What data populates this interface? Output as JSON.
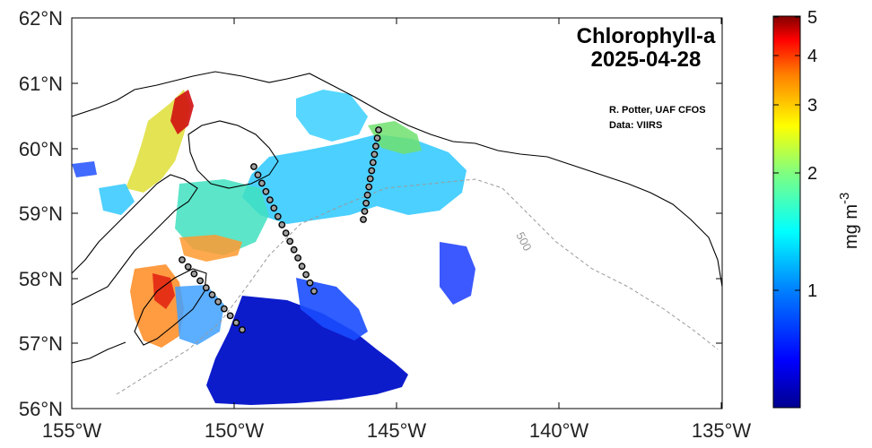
{
  "title": {
    "line1": "Chlorophyll-a",
    "line2": "2025-04-28"
  },
  "credits": {
    "author": "R. Potter, UAF CFOS",
    "data_source": "Data: VIIRS"
  },
  "axes": {
    "lon_ticks": [
      "155°W",
      "150°W",
      "145°W",
      "140°W",
      "135°W"
    ],
    "lat_ticks": [
      "62°N",
      "61°N",
      "60°N",
      "59°N",
      "58°N",
      "57°N",
      "56°N"
    ]
  },
  "colorbar": {
    "unit_main": "mg m",
    "unit_exp": "-3",
    "tick_labels": [
      "5",
      "4",
      "3",
      "2",
      "1"
    ],
    "scale": "log",
    "colormap": "jet",
    "colors": [
      "#00008f",
      "#0000ff",
      "#0080ff",
      "#00ffff",
      "#80ff80",
      "#ffff00",
      "#ff8000",
      "#ff0000",
      "#800000"
    ]
  },
  "isobath_label": "500",
  "colors": {
    "coastline": "#000000",
    "isobath": "#9a9a9a",
    "station_fill": "#a0a0a0",
    "station_stroke": "#000000"
  }
}
